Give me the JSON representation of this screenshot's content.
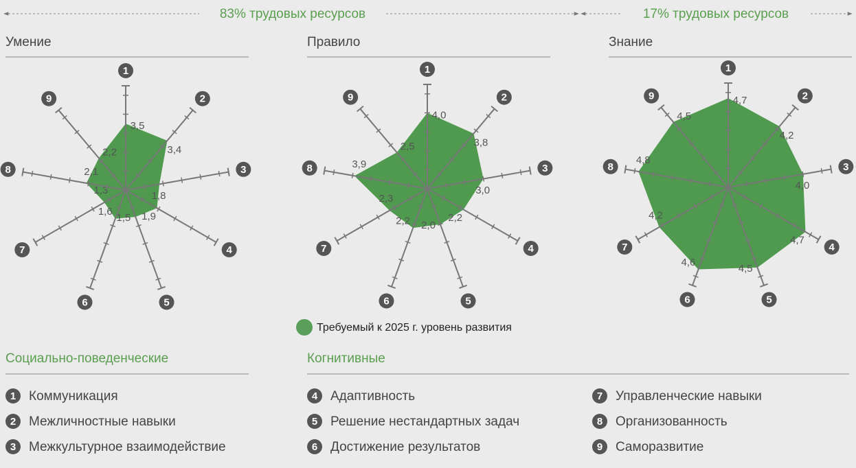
{
  "header": {
    "left": "83% трудовых ресурсов",
    "right": "17% трудовых ресурсов"
  },
  "chart_data": [
    {
      "type": "radar",
      "title": "Умение",
      "categories": [
        "1",
        "2",
        "3",
        "4",
        "5",
        "6",
        "7",
        "8",
        "9"
      ],
      "color": "#4f9a4f",
      "values": [
        3.5,
        3.4,
        1.8,
        1.9,
        1.5,
        1.6,
        1.3,
        2.1,
        2.2
      ],
      "value_labels": [
        "3,5",
        "3,4",
        "1,8",
        "1,9",
        "1,5",
        "1,6",
        "1,3",
        "2,1",
        "2,2"
      ],
      "rlim": [
        0,
        5.5
      ],
      "rticks": [
        1,
        2,
        3,
        4,
        5
      ]
    },
    {
      "type": "radar",
      "title": "Правило",
      "categories": [
        "1",
        "2",
        "3",
        "4",
        "5",
        "6",
        "7",
        "8",
        "9"
      ],
      "color": "#4f9a4f",
      "values": [
        4.0,
        3.8,
        3.0,
        2.2,
        2.0,
        2.2,
        2.3,
        3.9,
        2.5
      ],
      "value_labels": [
        "4,0",
        "3,8",
        "3,0",
        "2,2",
        "2,0",
        "2,2",
        "2,3",
        "3,9",
        "2,5"
      ],
      "rlim": [
        0,
        5.5
      ],
      "rticks": [
        1,
        2,
        3,
        4,
        5
      ]
    },
    {
      "type": "radar",
      "title": "Знание",
      "categories": [
        "1",
        "2",
        "3",
        "4",
        "5",
        "6",
        "7",
        "8",
        "9"
      ],
      "color": "#4f9a4f",
      "values": [
        4.7,
        4.2,
        4.0,
        4.7,
        4.5,
        4.6,
        4.2,
        4.8,
        4.5
      ],
      "value_labels": [
        "4,7",
        "4,2",
        "4,0",
        "4,7",
        "4,5",
        "4,6",
        "4,2",
        "4,8",
        "4,5"
      ],
      "rlim": [
        0,
        5.5
      ],
      "rticks": [
        1,
        2,
        3,
        4,
        5
      ]
    }
  ],
  "legend": "Требуемый к 2025 г. уровень развития",
  "groups": [
    {
      "title": "Социально-поведенческие"
    },
    {
      "title": "Когнитивные"
    }
  ],
  "skills": [
    {
      "number": "1",
      "name": "Коммуникация"
    },
    {
      "number": "2",
      "name": "Межличностные навыки"
    },
    {
      "number": "3",
      "name": "Межкультурное взаимодействие"
    },
    {
      "number": "4",
      "name": "Адаптивность"
    },
    {
      "number": "5",
      "name": "Решение нестандартных задач"
    },
    {
      "number": "6",
      "name": "Достижение результатов"
    },
    {
      "number": "7",
      "name": "Управленческие навыки"
    },
    {
      "number": "8",
      "name": "Организованность"
    },
    {
      "number": "9",
      "name": "Саморазвитие"
    }
  ]
}
